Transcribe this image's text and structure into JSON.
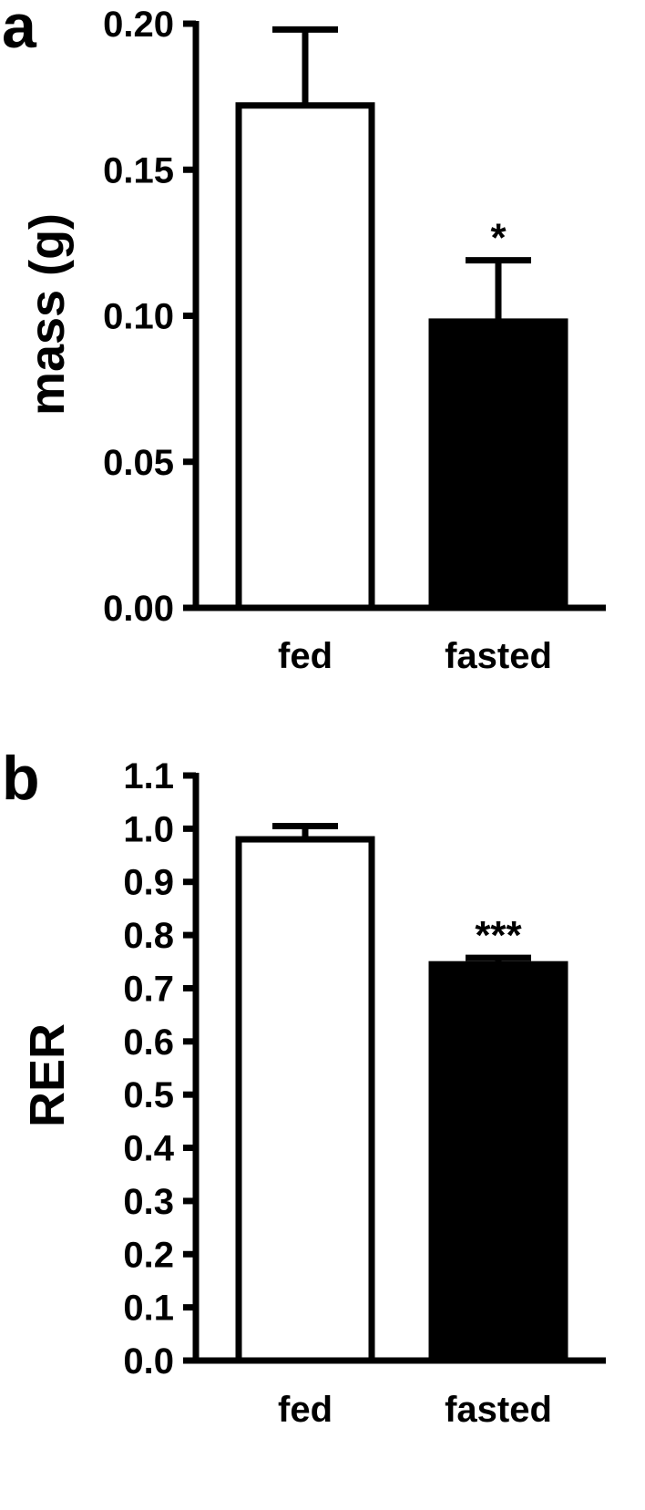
{
  "chart_data": [
    {
      "type": "bar",
      "panel_label": "a",
      "categories": [
        "fed",
        "fasted"
      ],
      "values": [
        0.172,
        0.098
      ],
      "errors": [
        0.026,
        0.021
      ],
      "bar_fill_colors": [
        "#ffffff",
        "#000000"
      ],
      "annotations": [
        "",
        "*"
      ],
      "ylabel": "mass (g)",
      "ylim": [
        0,
        0.2
      ],
      "yticks": [
        "0.00",
        "0.05",
        "0.10",
        "0.15",
        "0.20"
      ],
      "grid": false
    },
    {
      "type": "bar",
      "panel_label": "b",
      "categories": [
        "fed",
        "fasted"
      ],
      "values": [
        0.98,
        0.745
      ],
      "errors": [
        0.025,
        0.012
      ],
      "bar_fill_colors": [
        "#ffffff",
        "#000000"
      ],
      "annotations": [
        "",
        "***"
      ],
      "ylabel": "RER",
      "ylim": [
        0,
        1.1
      ],
      "yticks": [
        "0.0",
        "0.1",
        "0.2",
        "0.3",
        "0.4",
        "0.5",
        "0.6",
        "0.7",
        "0.8",
        "0.9",
        "1.0",
        "1.1"
      ],
      "grid": false
    }
  ]
}
